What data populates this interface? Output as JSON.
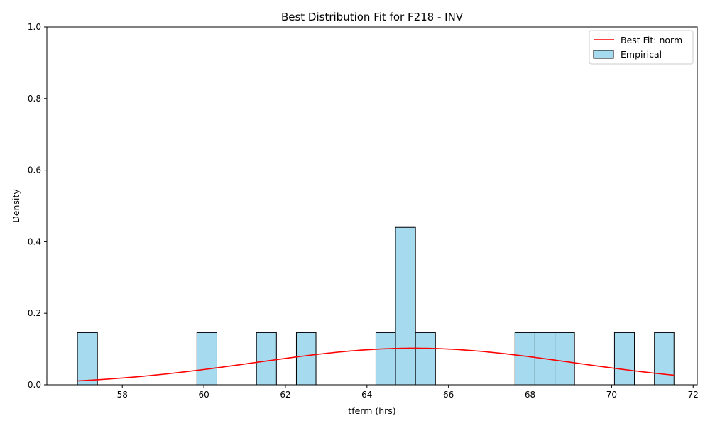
{
  "chart_data": {
    "type": "bar",
    "title": "Best Distribution Fit for F218 - INV",
    "xlabel": "tferm (hrs)",
    "ylabel": "Density",
    "xlim": [
      56.15,
      72.1
    ],
    "ylim": [
      0,
      1.0
    ],
    "xticks": [
      58,
      60,
      62,
      64,
      66,
      68,
      70,
      72
    ],
    "yticks": [
      0.0,
      0.2,
      0.4,
      0.6,
      0.8,
      1.0
    ],
    "bin_width": 0.4877,
    "bins": [
      {
        "x0": 56.9,
        "x1": 57.39,
        "value": 0.146
      },
      {
        "x0": 59.83,
        "x1": 60.32,
        "value": 0.146
      },
      {
        "x0": 61.29,
        "x1": 61.78,
        "value": 0.146
      },
      {
        "x0": 62.27,
        "x1": 62.75,
        "value": 0.146
      },
      {
        "x0": 64.22,
        "x1": 64.7,
        "value": 0.146
      },
      {
        "x0": 64.7,
        "x1": 65.19,
        "value": 0.44
      },
      {
        "x0": 65.19,
        "x1": 65.68,
        "value": 0.146
      },
      {
        "x0": 67.63,
        "x1": 68.12,
        "value": 0.146
      },
      {
        "x0": 68.12,
        "x1": 68.61,
        "value": 0.146
      },
      {
        "x0": 68.61,
        "x1": 69.09,
        "value": 0.146
      },
      {
        "x0": 70.07,
        "x1": 70.56,
        "value": 0.146
      },
      {
        "x0": 71.05,
        "x1": 71.53,
        "value": 0.146
      }
    ],
    "fit": {
      "name": "Best Fit: norm",
      "distribution": "norm",
      "mean": 65.15,
      "std": 3.9,
      "x_range": [
        56.9,
        71.53
      ]
    },
    "legend": {
      "position": "top-right",
      "entries": [
        "Best Fit: norm",
        "Empirical"
      ]
    },
    "grid": false,
    "colors": {
      "bar_fill": "#a6daee",
      "bar_edge": "#000000",
      "fit_line": "#ff0000"
    }
  }
}
